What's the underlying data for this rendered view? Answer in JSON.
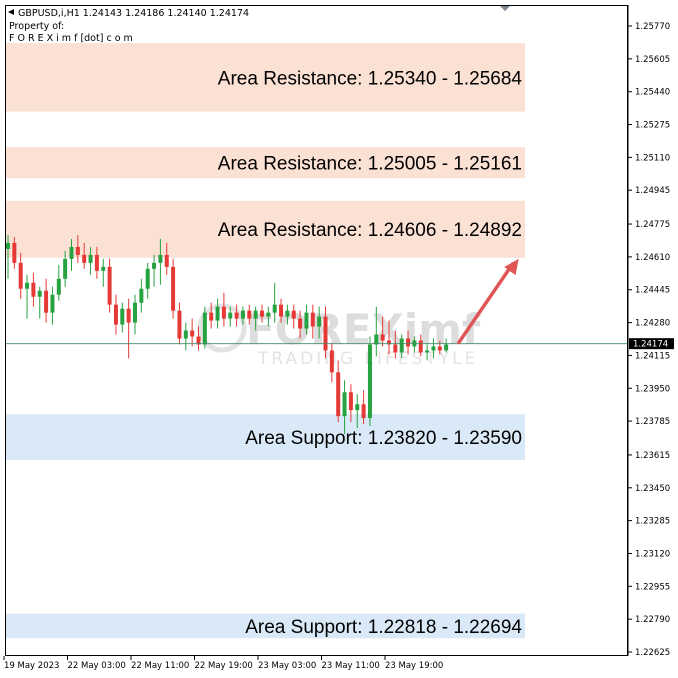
{
  "header": {
    "symbol_line": "GBPUSD,i,H1   1.24143 1.24186 1.24140 1.24174",
    "property_line": "Property of:",
    "owner_line": "F O R E X i m f [dot] c o m"
  },
  "watermark": {
    "brand": "FOREXimf",
    "tagline": "TRADING LIFESTYLE"
  },
  "colors": {
    "bull": "#26a241",
    "bear": "#e53935",
    "resistance_zone": "#fbe0d4",
    "support_zone": "#d9e9f7",
    "arrow": "#e05555",
    "current_price_bg": "#000000"
  },
  "chart_data": {
    "type": "candlestick",
    "symbol": "GBPUSD,i",
    "timeframe": "H1",
    "ylim": [
      1.2258,
      1.2584
    ],
    "y_ticks": [
      "1.25770",
      "1.25605",
      "1.25440",
      "1.25275",
      "1.25110",
      "1.24945",
      "1.24775",
      "1.24610",
      "1.24445",
      "1.24280",
      "1.24115",
      "1.23950",
      "1.23785",
      "1.23615",
      "1.23450",
      "1.23285",
      "1.23120",
      "1.22955",
      "1.22790",
      "1.22625"
    ],
    "x_labels": [
      "19 May 2023",
      "22 May 03:00",
      "22 May 11:00",
      "22 May 19:00",
      "23 May 03:00",
      "23 May 11:00",
      "23 May 19:00"
    ],
    "current_price": "1.24174",
    "zones": [
      {
        "kind": "resistance",
        "label": "Area Resistance: 1.25340 - 1.25684",
        "low": 1.2534,
        "high": 1.25684
      },
      {
        "kind": "resistance",
        "label": "Area Resistance: 1.25005 - 1.25161",
        "low": 1.25005,
        "high": 1.25161
      },
      {
        "kind": "resistance",
        "label": "Area Resistance: 1.24606 - 1.24892",
        "low": 1.24606,
        "high": 1.24892
      },
      {
        "kind": "support",
        "label": "Area Support: 1.23820 - 1.23590",
        "low": 1.2359,
        "high": 1.2382
      },
      {
        "kind": "support",
        "label": "Area Support: 1.22818 - 1.22694",
        "low": 1.22694,
        "high": 1.22818
      }
    ],
    "arrow": {
      "from": [
        71,
        1.2418
      ],
      "to": [
        79,
        1.246
      ]
    },
    "candles": [
      {
        "o": 1.2465,
        "h": 1.2472,
        "l": 1.245,
        "c": 1.2468
      },
      {
        "o": 1.2468,
        "h": 1.2471,
        "l": 1.2455,
        "c": 1.2458
      },
      {
        "o": 1.2458,
        "h": 1.2463,
        "l": 1.244,
        "c": 1.2445
      },
      {
        "o": 1.2445,
        "h": 1.2452,
        "l": 1.243,
        "c": 1.2448
      },
      {
        "o": 1.2448,
        "h": 1.2453,
        "l": 1.2436,
        "c": 1.2441
      },
      {
        "o": 1.2441,
        "h": 1.2446,
        "l": 1.243,
        "c": 1.2444
      },
      {
        "o": 1.2444,
        "h": 1.245,
        "l": 1.2428,
        "c": 1.2433
      },
      {
        "o": 1.2433,
        "h": 1.2446,
        "l": 1.2427,
        "c": 1.2442
      },
      {
        "o": 1.2442,
        "h": 1.2457,
        "l": 1.2439,
        "c": 1.245
      },
      {
        "o": 1.245,
        "h": 1.2464,
        "l": 1.2446,
        "c": 1.246
      },
      {
        "o": 1.246,
        "h": 1.247,
        "l": 1.2454,
        "c": 1.2466
      },
      {
        "o": 1.2466,
        "h": 1.2472,
        "l": 1.2458,
        "c": 1.2462
      },
      {
        "o": 1.2462,
        "h": 1.2468,
        "l": 1.2455,
        "c": 1.2458
      },
      {
        "o": 1.2458,
        "h": 1.2466,
        "l": 1.2452,
        "c": 1.2462
      },
      {
        "o": 1.2462,
        "h": 1.2466,
        "l": 1.245,
        "c": 1.2454
      },
      {
        "o": 1.2454,
        "h": 1.246,
        "l": 1.2446,
        "c": 1.2456
      },
      {
        "o": 1.2456,
        "h": 1.246,
        "l": 1.2433,
        "c": 1.2437
      },
      {
        "o": 1.2437,
        "h": 1.2442,
        "l": 1.2422,
        "c": 1.2427
      },
      {
        "o": 1.2427,
        "h": 1.2438,
        "l": 1.2423,
        "c": 1.2435
      },
      {
        "o": 1.2435,
        "h": 1.244,
        "l": 1.241,
        "c": 1.2428
      },
      {
        "o": 1.2428,
        "h": 1.2442,
        "l": 1.2422,
        "c": 1.2438
      },
      {
        "o": 1.2438,
        "h": 1.245,
        "l": 1.2433,
        "c": 1.2445
      },
      {
        "o": 1.2445,
        "h": 1.2458,
        "l": 1.244,
        "c": 1.2455
      },
      {
        "o": 1.2455,
        "h": 1.2462,
        "l": 1.2446,
        "c": 1.2458
      },
      {
        "o": 1.2458,
        "h": 1.247,
        "l": 1.2447,
        "c": 1.2462
      },
      {
        "o": 1.2462,
        "h": 1.2468,
        "l": 1.2452,
        "c": 1.2456
      },
      {
        "o": 1.2456,
        "h": 1.246,
        "l": 1.243,
        "c": 1.2434
      },
      {
        "o": 1.2434,
        "h": 1.2438,
        "l": 1.2417,
        "c": 1.242
      },
      {
        "o": 1.242,
        "h": 1.2428,
        "l": 1.2414,
        "c": 1.2424
      },
      {
        "o": 1.2424,
        "h": 1.243,
        "l": 1.2416,
        "c": 1.2421
      },
      {
        "o": 1.2421,
        "h": 1.2426,
        "l": 1.2414,
        "c": 1.2417
      },
      {
        "o": 1.2417,
        "h": 1.2436,
        "l": 1.2415,
        "c": 1.2433
      },
      {
        "o": 1.2433,
        "h": 1.2438,
        "l": 1.2425,
        "c": 1.2429
      },
      {
        "o": 1.2429,
        "h": 1.244,
        "l": 1.2425,
        "c": 1.2436
      },
      {
        "o": 1.2436,
        "h": 1.2443,
        "l": 1.2426,
        "c": 1.243
      },
      {
        "o": 1.243,
        "h": 1.2436,
        "l": 1.2426,
        "c": 1.2433
      },
      {
        "o": 1.2433,
        "h": 1.2437,
        "l": 1.2426,
        "c": 1.243
      },
      {
        "o": 1.243,
        "h": 1.2436,
        "l": 1.2427,
        "c": 1.2434
      },
      {
        "o": 1.2434,
        "h": 1.2437,
        "l": 1.2427,
        "c": 1.243
      },
      {
        "o": 1.243,
        "h": 1.2436,
        "l": 1.2424,
        "c": 1.2434
      },
      {
        "o": 1.2434,
        "h": 1.2437,
        "l": 1.2428,
        "c": 1.2431
      },
      {
        "o": 1.2431,
        "h": 1.2436,
        "l": 1.2426,
        "c": 1.2433
      },
      {
        "o": 1.2433,
        "h": 1.2448,
        "l": 1.2428,
        "c": 1.2437
      },
      {
        "o": 1.2437,
        "h": 1.244,
        "l": 1.2428,
        "c": 1.2431
      },
      {
        "o": 1.2431,
        "h": 1.2437,
        "l": 1.2427,
        "c": 1.2434
      },
      {
        "o": 1.2434,
        "h": 1.2437,
        "l": 1.2425,
        "c": 1.243
      },
      {
        "o": 1.243,
        "h": 1.2434,
        "l": 1.242,
        "c": 1.2425
      },
      {
        "o": 1.2425,
        "h": 1.2437,
        "l": 1.2422,
        "c": 1.2433
      },
      {
        "o": 1.2433,
        "h": 1.2437,
        "l": 1.242,
        "c": 1.2426
      },
      {
        "o": 1.2426,
        "h": 1.2436,
        "l": 1.242,
        "c": 1.2431
      },
      {
        "o": 1.2431,
        "h": 1.2436,
        "l": 1.241,
        "c": 1.2414
      },
      {
        "o": 1.2414,
        "h": 1.2418,
        "l": 1.2398,
        "c": 1.2403
      },
      {
        "o": 1.2403,
        "h": 1.2409,
        "l": 1.2378,
        "c": 1.2381
      },
      {
        "o": 1.2381,
        "h": 1.2399,
        "l": 1.2372,
        "c": 1.2393
      },
      {
        "o": 1.2393,
        "h": 1.2397,
        "l": 1.2378,
        "c": 1.2384
      },
      {
        "o": 1.2384,
        "h": 1.2392,
        "l": 1.2375,
        "c": 1.2387
      },
      {
        "o": 1.2387,
        "h": 1.2394,
        "l": 1.2377,
        "c": 1.238
      },
      {
        "o": 1.238,
        "h": 1.2421,
        "l": 1.2376,
        "c": 1.2417
      },
      {
        "o": 1.2417,
        "h": 1.2436,
        "l": 1.2411,
        "c": 1.2422
      },
      {
        "o": 1.2422,
        "h": 1.2431,
        "l": 1.2416,
        "c": 1.2419
      },
      {
        "o": 1.2419,
        "h": 1.2429,
        "l": 1.2412,
        "c": 1.2417
      },
      {
        "o": 1.2417,
        "h": 1.2424,
        "l": 1.241,
        "c": 1.2413
      },
      {
        "o": 1.2413,
        "h": 1.2422,
        "l": 1.241,
        "c": 1.242
      },
      {
        "o": 1.242,
        "h": 1.2424,
        "l": 1.2412,
        "c": 1.2416
      },
      {
        "o": 1.2416,
        "h": 1.2421,
        "l": 1.2413,
        "c": 1.2419
      },
      {
        "o": 1.2419,
        "h": 1.2422,
        "l": 1.2411,
        "c": 1.2413
      },
      {
        "o": 1.2413,
        "h": 1.2417,
        "l": 1.2409,
        "c": 1.2414
      },
      {
        "o": 1.2414,
        "h": 1.242,
        "l": 1.241,
        "c": 1.2416
      },
      {
        "o": 1.2416,
        "h": 1.2419,
        "l": 1.2412,
        "c": 1.2414
      },
      {
        "o": 1.2414,
        "h": 1.242,
        "l": 1.2413,
        "c": 1.2417
      }
    ]
  }
}
